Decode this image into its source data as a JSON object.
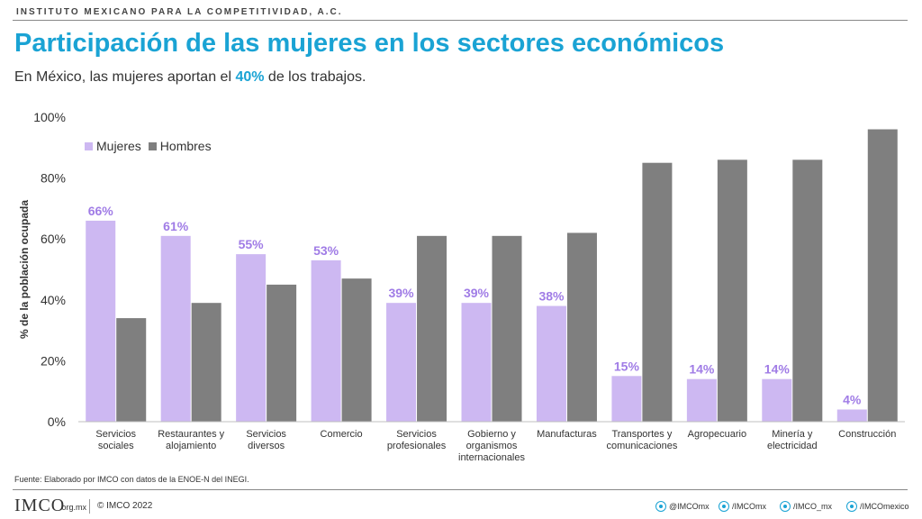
{
  "header": {
    "org": "INSTITUTO MEXICANO PARA LA COMPETITIVIDAD, A.C.",
    "title": "Participación de las mujeres en los sectores económicos",
    "subtitle_pre": "En México, las mujeres aportan el ",
    "subtitle_highlight": "40%",
    "subtitle_post": " de los trabajos."
  },
  "colors": {
    "women": "#cdb8f2",
    "men": "#7f7f7f",
    "accent": "#1aa3d4",
    "label": "#a07ce6"
  },
  "chart_data": {
    "type": "bar",
    "categories": [
      [
        "Servicios",
        "sociales"
      ],
      [
        "Restaurantes y",
        "alojamiento"
      ],
      [
        "Servicios",
        "diversos"
      ],
      [
        "Comercio"
      ],
      [
        "Servicios",
        "profesionales"
      ],
      [
        "Gobierno y",
        "organismos",
        "internacionales"
      ],
      [
        "Manufacturas"
      ],
      [
        "Transportes y",
        "comunicaciones"
      ],
      [
        "Agropecuario"
      ],
      [
        "Minería y",
        "electricidad"
      ],
      [
        "Construcción"
      ]
    ],
    "series": [
      {
        "name": "Mujeres",
        "values": [
          66,
          61,
          55,
          53,
          39,
          39,
          38,
          15,
          14,
          14,
          4
        ]
      },
      {
        "name": "Hombres",
        "values": [
          34,
          39,
          45,
          47,
          61,
          61,
          62,
          85,
          86,
          86,
          96
        ]
      }
    ],
    "data_labels": [
      "66%",
      "61%",
      "55%",
      "53%",
      "39%",
      "39%",
      "38%",
      "15%",
      "14%",
      "14%",
      "4%"
    ],
    "yticks": [
      "0%",
      "20%",
      "40%",
      "60%",
      "80%",
      "100%"
    ],
    "ylim": [
      0,
      100
    ],
    "ylabel": "% de la población ocupada",
    "xlabel": "",
    "legend_position": "top-left",
    "grid": false
  },
  "footer": {
    "source": "Fuente: Elaborado por IMCO con datos de la ENOE-N del INEGI.",
    "logo": "IMCO",
    "logo_sub": ".org.mx",
    "copyright": "© IMCO 2022",
    "social": [
      {
        "icon": "twitter-icon",
        "handle": "@IMCOmx"
      },
      {
        "icon": "facebook-icon",
        "handle": "/IMCOmx"
      },
      {
        "icon": "instagram-icon",
        "handle": "/IMCO_mx"
      },
      {
        "icon": "youtube-icon",
        "handle": "/IMCOmexico"
      }
    ]
  }
}
